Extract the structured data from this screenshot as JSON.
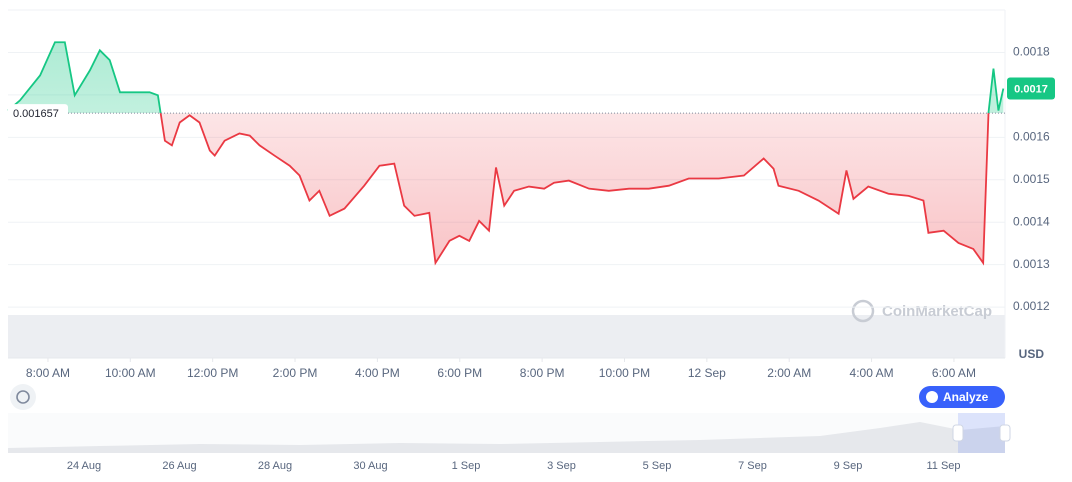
{
  "chart_data": {
    "type": "line",
    "x": [
      7.03,
      7.32,
      7.81,
      8.17,
      8.41,
      8.65,
      9.02,
      9.26,
      9.5,
      9.75,
      10.11,
      10.47,
      10.67,
      10.84,
      11.01,
      11.2,
      11.44,
      11.68,
      11.93,
      12.05,
      12.29,
      12.65,
      12.9,
      13.14,
      13.5,
      13.87,
      14.11,
      14.35,
      14.59,
      14.84,
      15.2,
      15.68,
      16.05,
      16.41,
      16.65,
      16.9,
      17.26,
      17.41,
      17.75,
      17.99,
      18.23,
      18.47,
      18.71,
      18.88,
      19.08,
      19.32,
      19.68,
      20.05,
      20.29,
      20.65,
      21.14,
      21.62,
      22.11,
      22.59,
      23.08,
      23.56,
      24.29,
      24.9,
      25.38,
      25.62,
      25.74,
      26.23,
      26.71,
      27.2,
      27.39,
      27.56,
      27.92,
      28.41,
      28.9,
      29.26,
      29.38,
      29.75,
      30.11,
      30.47,
      30.71,
      30.84,
      30.96,
      31.08,
      31.2
    ],
    "values": [
      0.001663,
      0.001687,
      0.001746,
      0.001824,
      0.001824,
      0.001699,
      0.001758,
      0.001805,
      0.001782,
      0.001706,
      0.001706,
      0.001706,
      0.001699,
      0.001592,
      0.001581,
      0.001635,
      0.001652,
      0.001635,
      0.001569,
      0.001557,
      0.001592,
      0.001609,
      0.001604,
      0.001581,
      0.001557,
      0.001533,
      0.00151,
      0.001451,
      0.001474,
      0.001415,
      0.001432,
      0.001486,
      0.001533,
      0.001538,
      0.001439,
      0.001415,
      0.001422,
      0.001304,
      0.001356,
      0.001368,
      0.001356,
      0.001403,
      0.00138,
      0.001529,
      0.001439,
      0.001474,
      0.001484,
      0.001479,
      0.001493,
      0.001498,
      0.001479,
      0.001474,
      0.001479,
      0.001479,
      0.001486,
      0.001503,
      0.001503,
      0.00151,
      0.00155,
      0.001526,
      0.001486,
      0.001474,
      0.001451,
      0.00142,
      0.001522,
      0.001455,
      0.001484,
      0.001467,
      0.001462,
      0.001451,
      0.001375,
      0.00138,
      0.001351,
      0.001337,
      0.001304,
      0.001659,
      0.001762,
      0.001663,
      0.001715
    ],
    "reference_value": 0.001657,
    "current_price": 0.0017,
    "up_color": "#16c784",
    "down_color": "#ea3943",
    "xlim": [
      7.03,
      31.24
    ],
    "xticks": [
      {
        "value": 8,
        "label": "8:00 AM"
      },
      {
        "value": 10,
        "label": "10:00 AM"
      },
      {
        "value": 12,
        "label": "12:00 PM"
      },
      {
        "value": 14,
        "label": "2:00 PM"
      },
      {
        "value": 16,
        "label": "4:00 PM"
      },
      {
        "value": 18,
        "label": "6:00 PM"
      },
      {
        "value": 20,
        "label": "8:00 PM"
      },
      {
        "value": 22,
        "label": "10:00 PM"
      },
      {
        "value": 24,
        "label": "12 Sep"
      },
      {
        "value": 26,
        "label": "2:00 AM"
      },
      {
        "value": 28,
        "label": "4:00 AM"
      },
      {
        "value": 30,
        "label": "6:00 AM"
      }
    ],
    "ylim": [
      0.00108,
      0.0019
    ],
    "yticks": [
      0.0012,
      0.0013,
      0.0014,
      0.0015,
      0.0016,
      0.0017,
      0.0018
    ],
    "y_unit": "USD",
    "grid": true
  },
  "watermark": "CoinMarketCap",
  "analyze_button": "Analyze",
  "navigator": {
    "labels": [
      "24 Aug",
      "26 Aug",
      "28 Aug",
      "30 Aug",
      "1 Sep",
      "3 Sep",
      "5 Sep",
      "7 Sep",
      "9 Sep",
      "11 Sep"
    ]
  }
}
